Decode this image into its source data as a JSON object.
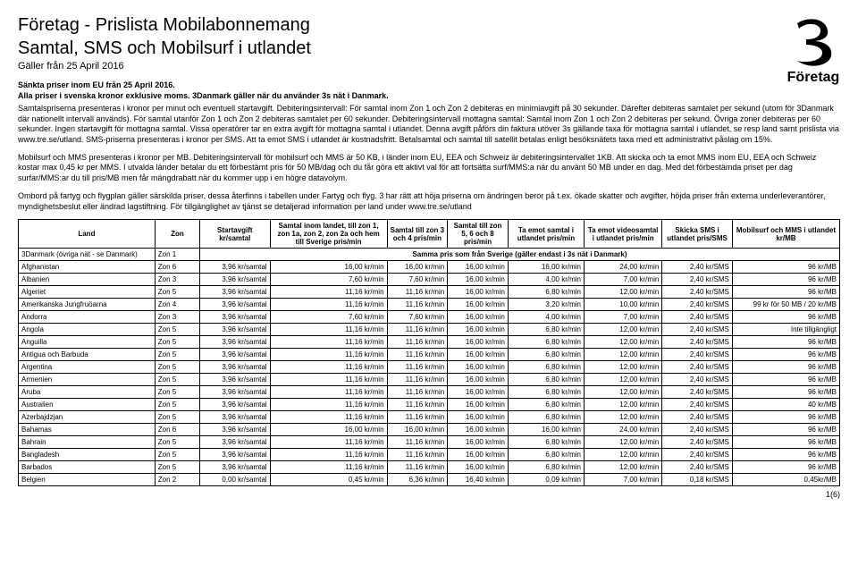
{
  "header": {
    "title_line1": "Företag - Prislista Mobilabonnemang",
    "title_line2": "Samtal, SMS och Mobilsurf i utlandet",
    "valid_from": "Gäller från 25 April 2016",
    "bold1": "Sänkta priser inom EU från 25 April 2016.",
    "bold2": "Alla priser i svenska kronor exklusive moms. 3Danmark gäller när du använder 3s nät i Danmark.",
    "logo_label": "Företag"
  },
  "intro": {
    "p1": "Samtalspriserna presenteras i kronor per minut och eventuell startavgift. Debiteringsintervall: För samtal inom Zon 1 och Zon 2 debiteras en minimiavgift på 30 sekunder. Därefter debiteras samtalet per sekund (utom för 3Danmark där nationellt intervall används). För samtal utanför Zon 1 och Zon 2 debiteras samtalet per 60 sekunder. Debiteringsintervall mottagna samtal: Samtal inom Zon 1 och Zon 2 debiteras per sekund. Övriga zoner debiteras per 60 sekunder. Ingen startavgift för mottagna samtal. Vissa operatörer tar en extra avgift för mottagna samtal i utlandet. Denna avgift påförs din faktura utöver 3s gällande taxa för mottagna samtal i utlandet, se resp land samt prislista via www.tre.se/utland. SMS-priserna presenteras i kronor per SMS. Att ta emot SMS i utlandet är kostnadsfritt. Betalsamtal och samtal till satellit betalas enligt besöksnätets taxa med ett administrativt påslag om 15%.",
    "p2": "Mobilsurf och MMS presenteras i kronor per MB. Debiteringsintervall  för mobilsurf och MMS är 50 KB, i länder inom EU, EEA och Schweiz är debiteringsintervallet 1KB. Att skicka och ta emot MMS inom EU, EEA och Schweiz kostar max 0,45 kr per MMS. I utvalda länder betalar du ett förbestämt pris för 50 MB/dag och du får göra ett aktivt val för att fortsätta surf/MMS:a när du använt 50 MB under en dag. Med det förbestämda priset per dag surfar/MMS:ar du till pris/MB men får mängdrabatt när du kommer upp i en högre datavolym.",
    "p3": "Ombord på fartyg och flygplan gäller särskilda priser, dessa återfinns i tabellen under Fartyg och flyg. 3 har rätt att höja priserna om ändringen beror på t.ex. ökade skatter och avgifter, höjda priser från externa underleverantörer, myndighetsbeslut eller ändrad lagstiftning. För tillgänglighet av tjänst se detaljerad information per land under www.tre.se/utland"
  },
  "table": {
    "columns": [
      "Land",
      "Zon",
      "Startavgift kr/samtal",
      "Samtal inom landet, till zon 1, zon 1a, zon 2, zon 2a och hem till Sverige pris/min",
      "Samtal till zon 3 och 4 pris/min",
      "Samtal till zon 5, 6 och 8 pris/min",
      "Ta emot samtal i utlandet pris/min",
      "Ta emot videosamtal i utlandet pris/min",
      "Skicka SMS i utlandet pris/SMS",
      "Mobilsurf och MMS i utlandet kr/MB"
    ],
    "samma_row": {
      "land": "3Danmark (övriga nät - se Danmark)",
      "zon": "Zon 1",
      "text": "Samma pris som från Sverige (gäller endast i 3s nät i Danmark)"
    },
    "rows": [
      [
        "Afghanistan",
        "Zon 6",
        "3,96 kr/samtal",
        "16,00 kr/min",
        "16,00 kr/min",
        "16,00 kr/min",
        "16,00 kr/min",
        "24,00 kr/min",
        "2,40 kr/SMS",
        "96 kr/MB"
      ],
      [
        "Albanien",
        "Zon 3",
        "3,96 kr/samtal",
        "7,60 kr/min",
        "7,60 kr/min",
        "16,00 kr/min",
        "4,00 kr/min",
        "7,00 kr/min",
        "2,40 kr/SMS",
        "96 kr/MB"
      ],
      [
        "Algeriet",
        "Zon 5",
        "3,96 kr/samtal",
        "11,16 kr/min",
        "11,16 kr/min",
        "16,00 kr/min",
        "6,80 kr/min",
        "12,00 kr/min",
        "2,40 kr/SMS",
        "96 kr/MB"
      ],
      [
        "Amerikanska Jungfruöarna",
        "Zon 4",
        "3,96 kr/samtal",
        "11,16 kr/min",
        "11,16 kr/min",
        "16,00 kr/min",
        "3,20 kr/min",
        "10,00 kr/min",
        "2,40 kr/SMS",
        "99 kr för 50 MB / 20 kr/MB"
      ],
      [
        "Andorra",
        "Zon 3",
        "3,96 kr/samtal",
        "7,60 kr/min",
        "7,60 kr/min",
        "16,00 kr/min",
        "4,00 kr/min",
        "7,00 kr/min",
        "2,40 kr/SMS",
        "96 kr/MB"
      ],
      [
        "Angola",
        "Zon 5",
        "3,96 kr/samtal",
        "11,16 kr/min",
        "11,16 kr/min",
        "16,00 kr/min",
        "6,80 kr/min",
        "12,00 kr/min",
        "2,40 kr/SMS",
        "Inte tillgängligt"
      ],
      [
        "Anguilla",
        "Zon 5",
        "3,96 kr/samtal",
        "11,16 kr/min",
        "11,16 kr/min",
        "16,00 kr/min",
        "6,80 kr/min",
        "12,00 kr/min",
        "2,40 kr/SMS",
        "96 kr/MB"
      ],
      [
        "Antigua och Barbuda",
        "Zon 5",
        "3,96 kr/samtal",
        "11,16 kr/min",
        "11,16 kr/min",
        "16,00 kr/min",
        "6,80 kr/min",
        "12,00 kr/min",
        "2,40 kr/SMS",
        "96 kr/MB"
      ],
      [
        "Argentina",
        "Zon 5",
        "3,96 kr/samtal",
        "11,16 kr/min",
        "11,16 kr/min",
        "16,00 kr/min",
        "6,80 kr/min",
        "12,00 kr/min",
        "2,40 kr/SMS",
        "96 kr/MB"
      ],
      [
        "Armenien",
        "Zon 5",
        "3,96 kr/samtal",
        "11,16 kr/min",
        "11,16 kr/min",
        "16,00 kr/min",
        "6,80 kr/min",
        "12,00 kr/min",
        "2,40 kr/SMS",
        "96 kr/MB"
      ],
      [
        "Aruba",
        "Zon 5",
        "3,96 kr/samtal",
        "11,16 kr/min",
        "11,16 kr/min",
        "16,00 kr/min",
        "6,80 kr/min",
        "12,00 kr/min",
        "2,40 kr/SMS",
        "96 kr/MB"
      ],
      [
        "Australien",
        "Zon 5",
        "3,96 kr/samtal",
        "11,16 kr/min",
        "11,16 kr/min",
        "16,00 kr/min",
        "6,80 kr/min",
        "12,00 kr/min",
        "2,40 kr/SMS",
        "40 kr/MB"
      ],
      [
        "Azerbajdzjan",
        "Zon 5",
        "3,96 kr/samtal",
        "11,16 kr/min",
        "11,16 kr/min",
        "16,00 kr/min",
        "6,80 kr/min",
        "12,00 kr/min",
        "2,40 kr/SMS",
        "96 kr/MB"
      ],
      [
        "Bahamas",
        "Zon 6",
        "3,96 kr/samtal",
        "16,00 kr/min",
        "16,00 kr/min",
        "16,00 kr/min",
        "16,00 kr/min",
        "24,00 kr/min",
        "2,40 kr/SMS",
        "96 kr/MB"
      ],
      [
        "Bahrain",
        "Zon 5",
        "3,96 kr/samtal",
        "11,16 kr/min",
        "11,16 kr/min",
        "16,00 kr/min",
        "6,80 kr/min",
        "12,00 kr/min",
        "2,40 kr/SMS",
        "96 kr/MB"
      ],
      [
        "Bangladesh",
        "Zon 5",
        "3,96 kr/samtal",
        "11,16 kr/min",
        "11,16 kr/min",
        "16,00 kr/min",
        "6,80 kr/min",
        "12,00 kr/min",
        "2,40 kr/SMS",
        "96 kr/MB"
      ],
      [
        "Barbados",
        "Zon 5",
        "3,96 kr/samtal",
        "11,16 kr/min",
        "11,16 kr/min",
        "16,00 kr/min",
        "6,80 kr/min",
        "12,00 kr/min",
        "2,40 kr/SMS",
        "96 kr/MB"
      ],
      [
        "Belgien",
        "Zon 2",
        "0,00 kr/samtal",
        "0,45 kr/min",
        "6,36 kr/min",
        "16,40 kr/min",
        "0,09 kr/min",
        "7,00 kr/min",
        "0,18 kr/SMS",
        "0,45kr/MB"
      ]
    ]
  },
  "footer": {
    "page": "1(6)"
  },
  "style": {
    "col_widths": [
      "140px",
      "46px",
      "72px",
      "120px",
      "62px",
      "62px",
      "78px",
      "80px",
      "72px",
      "110px"
    ]
  }
}
